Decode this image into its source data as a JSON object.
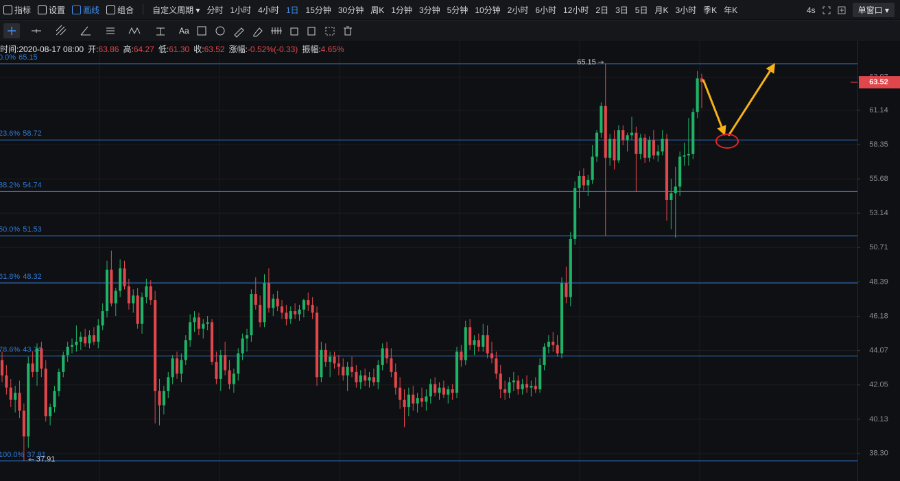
{
  "toolbar": {
    "menu": [
      "指标",
      "设置",
      "画线",
      "组合"
    ],
    "active_menu": 2,
    "custom_period": "自定义周期",
    "periods": [
      "分时",
      "1小时",
      "4小时",
      "1日",
      "15分钟",
      "30分钟",
      "周K",
      "1分钟",
      "3分钟",
      "5分钟",
      "10分钟",
      "2小时",
      "6小时",
      "12小时",
      "2日",
      "3日",
      "5日",
      "月K",
      "3小时",
      "季K",
      "年K"
    ],
    "active_period": 3,
    "refresh": "4s",
    "window": "单窗口"
  },
  "drawing_tools": {
    "text_tool": "Aa"
  },
  "chart_data": {
    "type": "candlestick",
    "log_scale": true,
    "grid": true,
    "up_color": "#1fb367",
    "down_color": "#e0474c",
    "ylim": [
      36.89,
      67.06
    ],
    "yticks": [
      63.97,
      61.14,
      58.35,
      55.68,
      53.14,
      50.71,
      48.39,
      46.18,
      44.07,
      42.05,
      40.13,
      {
        "value": 38.3,
        "label": "38.30"
      }
    ],
    "info": {
      "time_label": "时间:",
      "time": "2020-08-17 08:00",
      "fields": [
        {
          "label": "开:",
          "value": 63.86
        },
        {
          "label": "高:",
          "value": 64.27
        },
        {
          "label": "低:",
          "value": 61.3,
          "value_label": "61.30"
        },
        {
          "label": "收:",
          "value": 63.52
        },
        {
          "label": "涨幅:",
          "value": "-0.52%(-0.33)"
        },
        {
          "label": "振幅:",
          "value": "4.65%"
        }
      ]
    },
    "last_price": 63.52,
    "max_label": 65.15,
    "min_label": 37.91,
    "fibonacci": {
      "color": "#2f78d4",
      "levels": [
        {
          "ratio": "0.0%",
          "value": 65.15
        },
        {
          "ratio": "23.6%",
          "value": 58.72
        },
        {
          "ratio": "38.2%",
          "value": 54.74
        },
        {
          "ratio": "50.0%",
          "value": 51.53
        },
        {
          "ratio": "61.8%",
          "value": 48.32
        },
        {
          "ratio": "78.6%",
          "value": 43.74
        },
        {
          "ratio": "100.0%",
          "value": 37.91
        }
      ]
    },
    "ohlc": [
      [
        43.5,
        44.0,
        42.2,
        42.6
      ],
      [
        42.6,
        43.2,
        41.5,
        41.9
      ],
      [
        41.9,
        42.4,
        40.8,
        41.2
      ],
      [
        41.2,
        42.0,
        40.5,
        41.6
      ],
      [
        41.6,
        42.3,
        40.2,
        40.6
      ],
      [
        40.6,
        41.0,
        37.91,
        39.2
      ],
      [
        39.2,
        43.7,
        38.6,
        43.3
      ],
      [
        43.3,
        44.0,
        42.5,
        42.8
      ],
      [
        42.8,
        44.5,
        42.0,
        44.2
      ],
      [
        44.2,
        44.6,
        42.5,
        43.0
      ],
      [
        43.0,
        43.5,
        40.0,
        40.3
      ],
      [
        40.3,
        41.0,
        39.8,
        40.8
      ],
      [
        40.8,
        42.0,
        40.5,
        41.7
      ],
      [
        41.7,
        43.0,
        41.4,
        42.8
      ],
      [
        42.8,
        44.0,
        42.5,
        43.8
      ],
      [
        43.8,
        44.6,
        43.4,
        44.3
      ],
      [
        44.3,
        44.8,
        43.9,
        44.4
      ],
      [
        44.4,
        45.6,
        44.0,
        44.6
      ],
      [
        44.6,
        45.2,
        44.1,
        44.9
      ],
      [
        44.9,
        45.4,
        44.3,
        44.5
      ],
      [
        44.5,
        45.3,
        44.2,
        45.0
      ],
      [
        45.0,
        45.5,
        44.4,
        44.6
      ],
      [
        44.6,
        46.0,
        44.2,
        45.6
      ],
      [
        45.6,
        47.0,
        45.3,
        46.5
      ],
      [
        46.5,
        49.8,
        46.1,
        49.2
      ],
      [
        49.2,
        50.5,
        46.8,
        47.0
      ],
      [
        47.0,
        48.0,
        46.2,
        47.8
      ],
      [
        47.8,
        49.9,
        47.4,
        49.3
      ],
      [
        49.3,
        49.8,
        47.9,
        48.1
      ],
      [
        48.1,
        48.6,
        46.6,
        47.0
      ],
      [
        47.0,
        47.9,
        46.4,
        47.5
      ],
      [
        47.5,
        48.0,
        45.4,
        45.7
      ],
      [
        45.7,
        47.7,
        45.1,
        47.4
      ],
      [
        47.4,
        48.6,
        47.0,
        48.1
      ],
      [
        48.1,
        48.5,
        46.9,
        47.2
      ],
      [
        47.2,
        47.8,
        39.9,
        41.7
      ],
      [
        41.7,
        42.4,
        39.8,
        40.9
      ],
      [
        40.9,
        42.0,
        40.4,
        41.7
      ],
      [
        41.7,
        42.8,
        41.3,
        42.5
      ],
      [
        42.5,
        43.8,
        42.1,
        43.6
      ],
      [
        43.6,
        44.0,
        42.4,
        42.7
      ],
      [
        42.7,
        43.9,
        42.2,
        43.5
      ],
      [
        43.5,
        45.0,
        43.2,
        44.7
      ],
      [
        44.7,
        46.3,
        44.3,
        45.8
      ],
      [
        45.8,
        46.5,
        45.2,
        46.1
      ],
      [
        46.1,
        46.4,
        45.0,
        45.4
      ],
      [
        45.4,
        46.0,
        44.8,
        45.7
      ],
      [
        45.7,
        46.2,
        45.3,
        45.8
      ],
      [
        45.8,
        46.0,
        43.2,
        43.4
      ],
      [
        43.4,
        44.0,
        42.1,
        42.4
      ],
      [
        42.4,
        44.1,
        41.7,
        43.8
      ],
      [
        43.8,
        44.6,
        42.6,
        42.9
      ],
      [
        42.9,
        43.5,
        41.8,
        42.1
      ],
      [
        42.1,
        43.0,
        41.6,
        42.7
      ],
      [
        42.7,
        44.2,
        42.3,
        43.9
      ],
      [
        43.9,
        45.1,
        43.5,
        44.8
      ],
      [
        44.8,
        45.4,
        44.0,
        45.0
      ],
      [
        45.0,
        47.9,
        44.6,
        47.6
      ],
      [
        47.6,
        48.7,
        46.6,
        46.9
      ],
      [
        46.9,
        47.5,
        45.5,
        45.8
      ],
      [
        45.8,
        48.9,
        45.5,
        48.3
      ],
      [
        48.3,
        49.3,
        46.4,
        46.7
      ],
      [
        46.7,
        47.6,
        46.2,
        47.3
      ],
      [
        47.3,
        47.8,
        46.5,
        46.8
      ],
      [
        46.8,
        47.2,
        46.0,
        46.4
      ],
      [
        46.4,
        46.9,
        45.6,
        46.0
      ],
      [
        46.0,
        46.8,
        45.7,
        46.5
      ],
      [
        46.5,
        47.0,
        46.0,
        46.3
      ],
      [
        46.3,
        46.9,
        45.9,
        46.6
      ],
      [
        46.6,
        47.3,
        46.1,
        47.2
      ],
      [
        47.2,
        47.7,
        46.5,
        46.9
      ],
      [
        46.9,
        47.4,
        46.0,
        46.4
      ],
      [
        46.4,
        46.8,
        42.0,
        42.5
      ],
      [
        42.5,
        44.6,
        42.2,
        44.1
      ],
      [
        44.1,
        44.5,
        43.1,
        43.4
      ],
      [
        43.4,
        44.0,
        42.5,
        43.7
      ],
      [
        43.7,
        44.0,
        43.0,
        43.3
      ],
      [
        43.3,
        43.8,
        42.6,
        43.1
      ],
      [
        43.1,
        43.6,
        42.3,
        42.6
      ],
      [
        42.6,
        43.4,
        41.7,
        43.1
      ],
      [
        43.1,
        43.7,
        42.5,
        42.8
      ],
      [
        42.8,
        43.2,
        41.9,
        42.2
      ],
      [
        42.2,
        42.9,
        41.8,
        42.6
      ],
      [
        42.6,
        43.0,
        42.0,
        42.3
      ],
      [
        42.3,
        42.8,
        41.9,
        42.5
      ],
      [
        42.5,
        43.0,
        42.0,
        42.2
      ],
      [
        42.2,
        43.5,
        41.8,
        43.2
      ],
      [
        43.2,
        44.5,
        42.9,
        44.2
      ],
      [
        44.2,
        44.6,
        43.3,
        43.6
      ],
      [
        43.6,
        44.2,
        42.5,
        42.8
      ],
      [
        42.8,
        43.3,
        41.5,
        41.9
      ],
      [
        41.9,
        42.5,
        40.7,
        41.2
      ],
      [
        41.2,
        41.8,
        39.7,
        40.8
      ],
      [
        40.8,
        41.9,
        40.3,
        41.5
      ],
      [
        41.5,
        42.0,
        40.6,
        41.0
      ],
      [
        41.0,
        41.6,
        40.5,
        41.3
      ],
      [
        41.3,
        41.9,
        40.8,
        41.1
      ],
      [
        41.1,
        41.8,
        40.6,
        41.4
      ],
      [
        41.4,
        42.4,
        41.0,
        42.1
      ],
      [
        42.1,
        42.5,
        41.4,
        41.6
      ],
      [
        41.6,
        42.2,
        41.2,
        41.9
      ],
      [
        41.9,
        42.3,
        41.3,
        41.5
      ],
      [
        41.5,
        42.0,
        41.0,
        41.8
      ],
      [
        41.8,
        42.1,
        41.2,
        41.6
      ],
      [
        41.6,
        44.3,
        41.3,
        44.0
      ],
      [
        44.0,
        44.4,
        43.1,
        43.5
      ],
      [
        43.5,
        45.9,
        43.2,
        45.5
      ],
      [
        45.5,
        46.0,
        44.1,
        44.4
      ],
      [
        44.4,
        45.0,
        43.8,
        44.7
      ],
      [
        44.7,
        45.1,
        44.0,
        44.3
      ],
      [
        44.3,
        45.7,
        44.0,
        45.0
      ],
      [
        45.0,
        45.6,
        43.6,
        43.9
      ],
      [
        43.9,
        44.6,
        43.3,
        43.6
      ],
      [
        43.6,
        44.0,
        42.4,
        42.7
      ],
      [
        42.7,
        43.2,
        41.3,
        41.8
      ],
      [
        41.8,
        42.3,
        41.2,
        41.6
      ],
      [
        41.6,
        42.5,
        41.3,
        42.2
      ],
      [
        42.2,
        42.8,
        41.7,
        42.3
      ],
      [
        42.3,
        42.6,
        41.5,
        41.8
      ],
      [
        41.8,
        42.4,
        41.5,
        42.1
      ],
      [
        42.1,
        42.6,
        41.6,
        41.9
      ],
      [
        41.9,
        42.3,
        41.4,
        42.0
      ],
      [
        42.0,
        42.5,
        41.6,
        41.8
      ],
      [
        41.8,
        43.6,
        41.6,
        43.2
      ],
      [
        43.2,
        44.5,
        42.9,
        44.3
      ],
      [
        44.3,
        45.0,
        43.9,
        44.6
      ],
      [
        44.6,
        45.2,
        44.0,
        44.4
      ],
      [
        44.4,
        45.0,
        43.7,
        43.9
      ],
      [
        43.9,
        48.7,
        43.6,
        48.3
      ],
      [
        48.3,
        49.4,
        47.0,
        47.4
      ],
      [
        47.4,
        51.8,
        46.8,
        51.3
      ],
      [
        51.3,
        55.5,
        50.9,
        55.0
      ],
      [
        55.0,
        56.3,
        53.5,
        55.9
      ],
      [
        55.9,
        56.5,
        54.8,
        55.2
      ],
      [
        55.2,
        56.0,
        54.4,
        55.6
      ],
      [
        55.6,
        58.3,
        55.3,
        57.4
      ],
      [
        57.4,
        59.5,
        57.0,
        59.3
      ],
      [
        59.3,
        61.8,
        58.9,
        61.5
      ],
      [
        61.5,
        65.15,
        51.53,
        57.3
      ],
      [
        57.3,
        59.2,
        56.7,
        58.8
      ],
      [
        58.8,
        59.5,
        56.4,
        57.1
      ],
      [
        57.1,
        59.9,
        56.9,
        59.5
      ],
      [
        59.5,
        59.9,
        58.3,
        58.7
      ],
      [
        58.7,
        59.3,
        57.8,
        59.1
      ],
      [
        59.1,
        60.6,
        58.7,
        59.3
      ],
      [
        59.3,
        59.8,
        54.7,
        57.6
      ],
      [
        57.6,
        59.2,
        57.2,
        58.9
      ],
      [
        58.9,
        59.2,
        56.9,
        57.3
      ],
      [
        57.3,
        59.0,
        57.0,
        58.7
      ],
      [
        58.7,
        59.5,
        57.2,
        57.5
      ],
      [
        57.5,
        58.3,
        57.0,
        57.8
      ],
      [
        57.8,
        59.5,
        57.5,
        58.8
      ],
      [
        58.8,
        59.2,
        52.6,
        54.1
      ],
      [
        54.1,
        55.7,
        52.0,
        54.6
      ],
      [
        54.6,
        56.6,
        51.4,
        55.1
      ],
      [
        55.1,
        57.8,
        54.4,
        57.4
      ],
      [
        57.4,
        58.5,
        56.7,
        57.5
      ],
      [
        57.5,
        60.5,
        56.7,
        57.6
      ],
      [
        57.6,
        61.3,
        57.2,
        61.0
      ],
      [
        61.0,
        64.5,
        60.5,
        63.86
      ],
      [
        63.86,
        64.27,
        61.3,
        63.52
      ]
    ]
  }
}
